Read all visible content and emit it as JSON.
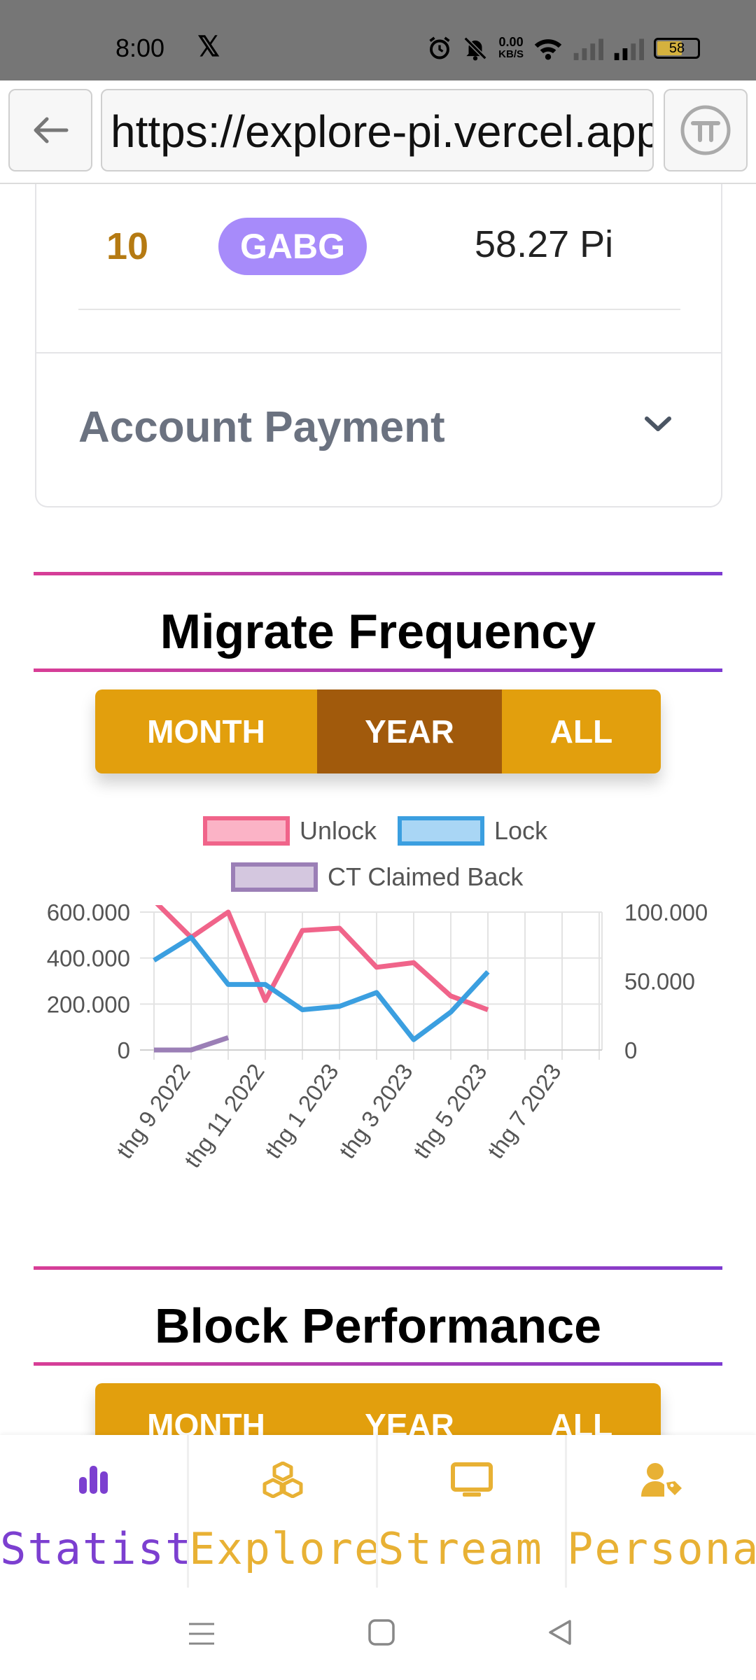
{
  "status_bar": {
    "time": "8:00",
    "x_logo": "𝕏",
    "net_speed_value": "0.00",
    "net_speed_unit": "KB/S",
    "battery": "58"
  },
  "browser": {
    "url": "https://explore-pi.vercel.app",
    "icons": {
      "back": "arrow-left-icon",
      "pi": "pi-logo-icon"
    }
  },
  "rank_card": {
    "rank": "10",
    "badge": "GABG",
    "amount": "58.27 Pi"
  },
  "account_payment": {
    "title": "Account Payment",
    "icon": "chevron-down-icon"
  },
  "migrate": {
    "title": "Migrate Frequency",
    "tabs": [
      "MONTH",
      "YEAR",
      "ALL"
    ],
    "active_tab": "YEAR"
  },
  "block": {
    "title": "Block Performance",
    "tabs": [
      "MONTH",
      "YEAR",
      "ALL"
    ]
  },
  "colors": {
    "accent_gold": "#e29f0d",
    "accent_active": "#a15a0c",
    "unlock": "#f0648a",
    "lock": "#3b9fe0",
    "ct": "#9b7fb6",
    "nav_active": "#7c3fd0",
    "nav_inactive": "#e8b134"
  },
  "chart_data": {
    "type": "line",
    "legend": [
      "Unlock",
      "Lock",
      "CT Claimed Back"
    ],
    "x_ticks": [
      "thg 9 2022",
      "thg 11 2022",
      "thg 1 2023",
      "thg 3 2023",
      "thg 5 2023",
      "thg 7 2023"
    ],
    "y_left_ticks": [
      "600.000",
      "400.000",
      "200.000",
      "0"
    ],
    "y_right_ticks": [
      "100.000",
      "50.000",
      "0"
    ],
    "y_left_range": [
      0,
      600000
    ],
    "y_right_range": [
      0,
      100000
    ],
    "grid": true,
    "legend_position": "top",
    "series": [
      {
        "name": "Unlock",
        "axis": "left",
        "x": [
          "2022-08",
          "2022-09",
          "2022-10",
          "2022-11",
          "2022-12",
          "2023-01",
          "2023-02",
          "2023-03",
          "2023-04",
          "2023-05"
        ],
        "values": [
          650000,
          490000,
          600000,
          215000,
          520000,
          530000,
          360000,
          380000,
          235000,
          175000
        ]
      },
      {
        "name": "Lock",
        "axis": "left",
        "x": [
          "2022-08",
          "2022-09",
          "2022-10",
          "2022-11",
          "2022-12",
          "2023-01",
          "2023-02",
          "2023-03",
          "2023-04",
          "2023-05"
        ],
        "values": [
          390000,
          490000,
          285000,
          285000,
          175000,
          190000,
          250000,
          45000,
          165000,
          340000
        ]
      },
      {
        "name": "CT Claimed Back",
        "axis": "right",
        "x": [
          "2022-08",
          "2022-09",
          "2022-10"
        ],
        "values": [
          0,
          0,
          9000
        ]
      }
    ]
  },
  "bottom_nav": [
    {
      "label": "Statistic",
      "icon": "bar-chart-icon",
      "active": true
    },
    {
      "label": "Explore",
      "icon": "cubes-icon",
      "active": false
    },
    {
      "label": "Stream",
      "icon": "monitor-icon",
      "active": false
    },
    {
      "label": "Personal",
      "icon": "user-tag-icon",
      "active": false
    }
  ],
  "system_nav": {
    "icons": [
      "menu-icon",
      "home-square-icon",
      "back-triangle-icon"
    ]
  }
}
